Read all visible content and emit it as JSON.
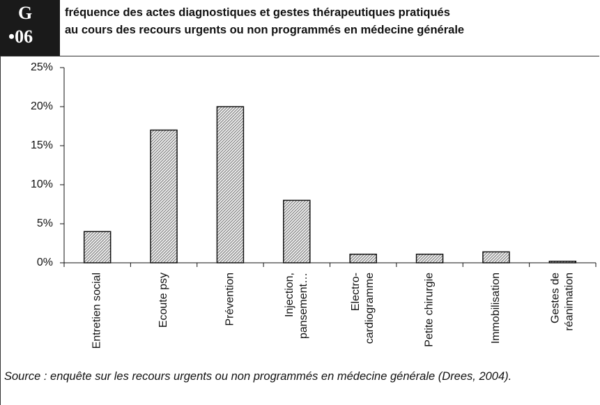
{
  "badge": {
    "letter": "G",
    "number": "•06"
  },
  "chart_data": {
    "type": "bar",
    "title": [
      "fréquence des actes diagnostiques et gestes thérapeutiques pratiqués",
      "au cours des recours urgents ou non programmés en médecine générale"
    ],
    "categories": [
      "Entretien social",
      "Ecoute psy",
      "Prévention",
      "Injection,\npansement…",
      "Electro-\ncardiogramme",
      "Petite chirurgie",
      "Immobilisation",
      "Gestes de\nréanimation"
    ],
    "values": [
      4,
      17,
      20,
      8,
      1.1,
      1.1,
      1.4,
      0.2
    ],
    "color": "#9a9a9a",
    "ylim": [
      0,
      25
    ],
    "yticks": [
      {
        "value": 0,
        "label": "0%"
      },
      {
        "value": 5,
        "label": "5%"
      },
      {
        "value": 10,
        "label": "10%"
      },
      {
        "value": 15,
        "label": "15%"
      },
      {
        "value": 20,
        "label": "20%"
      },
      {
        "value": 25,
        "label": "25%"
      }
    ],
    "grid": false
  },
  "source": "Source : enquête sur les recours urgents ou non programmés en médecine générale (Drees, 2004)."
}
